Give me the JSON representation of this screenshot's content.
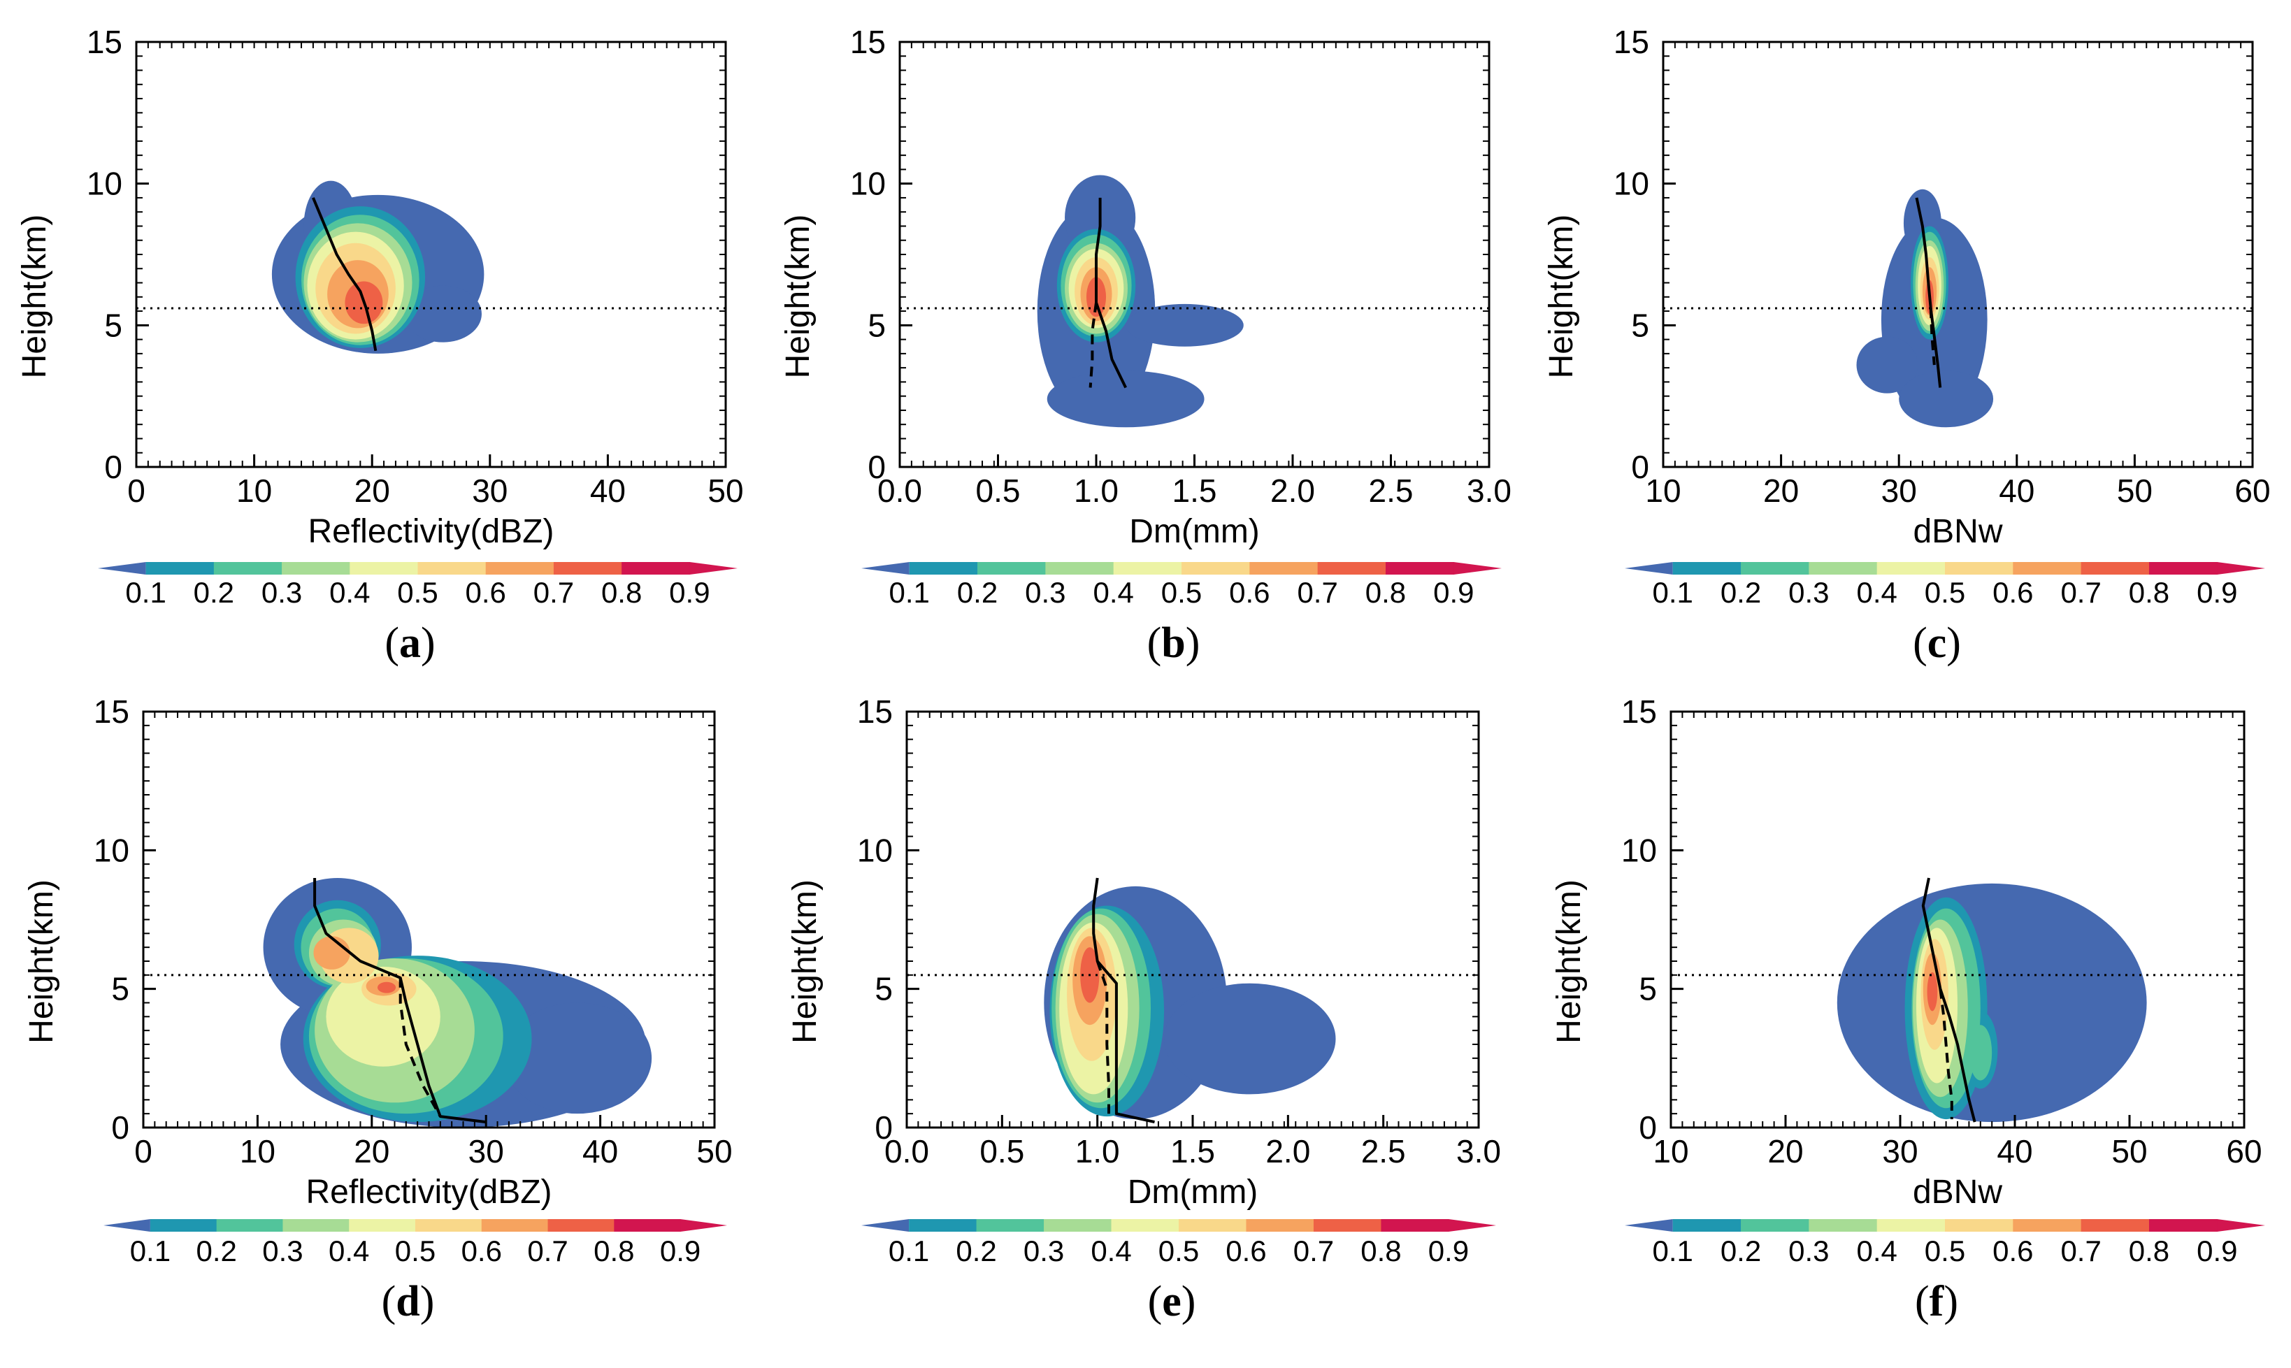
{
  "colors": {
    "levels": [
      "#4569b0",
      "#1f97b0",
      "#52c49b",
      "#a7dc95",
      "#ecf3a5",
      "#f9d88a",
      "#f6a35f",
      "#ee6146",
      "#d2154f"
    ],
    "profile_line": "#000000",
    "melting_line": "#000000"
  },
  "chart_data": [
    {
      "type": "contour",
      "panel": "(a)",
      "panel_letter": "a",
      "xlabel": "Reflectivity(dBZ)",
      "ylabel": "Height(km)",
      "xlim": [
        0,
        50
      ],
      "ylim": [
        0,
        15
      ],
      "xticks": [
        "0",
        "10",
        "20",
        "30",
        "40",
        "50"
      ],
      "yticks": [
        "0",
        "5",
        "10",
        "15"
      ],
      "colorbar_ticks": [
        "0.1",
        "0.2",
        "0.3",
        "0.4",
        "0.5",
        "0.6",
        "0.7",
        "0.8",
        "0.9"
      ],
      "melting_level_km": 5.6,
      "solid_profile": [
        [
          15,
          9.5
        ],
        [
          16,
          8.5
        ],
        [
          17,
          7.5
        ],
        [
          18,
          6.8
        ],
        [
          19,
          6.2
        ],
        [
          19.5,
          5.6
        ],
        [
          20,
          4.8
        ],
        [
          20.3,
          4.1
        ]
      ],
      "dashed_profile": [],
      "blobs": [
        {
          "cx": 20.5,
          "cy": 6.8,
          "rx": 9.0,
          "ry": 2.8,
          "level": 0
        },
        {
          "cx": 16.5,
          "cy": 8.5,
          "rx": 2.3,
          "ry": 1.6,
          "level": 0
        },
        {
          "cx": 26.0,
          "cy": 5.4,
          "rx": 3.3,
          "ry": 1.0,
          "level": 0
        },
        {
          "cx": 19.0,
          "cy": 6.7,
          "rx": 5.5,
          "ry": 2.5,
          "level": 1
        },
        {
          "cx": 19.0,
          "cy": 6.6,
          "rx": 5.0,
          "ry": 2.3,
          "level": 2
        },
        {
          "cx": 18.8,
          "cy": 6.5,
          "rx": 4.6,
          "ry": 2.1,
          "level": 3
        },
        {
          "cx": 18.6,
          "cy": 6.4,
          "rx": 4.1,
          "ry": 1.9,
          "level": 4
        },
        {
          "cx": 18.6,
          "cy": 6.3,
          "rx": 3.4,
          "ry": 1.6,
          "level": 5
        },
        {
          "cx": 18.8,
          "cy": 6.1,
          "rx": 2.6,
          "ry": 1.2,
          "level": 6
        },
        {
          "cx": 19.3,
          "cy": 5.8,
          "rx": 1.6,
          "ry": 0.75,
          "level": 7
        }
      ]
    },
    {
      "type": "contour",
      "panel": "(b)",
      "panel_letter": "b",
      "xlabel": "Dm(mm)",
      "ylabel": "Height(km)",
      "xlim": [
        0,
        3
      ],
      "ylim": [
        0,
        15
      ],
      "xticks": [
        "0.0",
        "0.5",
        "1.0",
        "1.5",
        "2.0",
        "2.5",
        "3.0"
      ],
      "yticks": [
        "0",
        "5",
        "10",
        "15"
      ],
      "colorbar_ticks": [
        "0.1",
        "0.2",
        "0.3",
        "0.4",
        "0.5",
        "0.6",
        "0.7",
        "0.8",
        "0.9"
      ],
      "melting_level_km": 5.6,
      "solid_profile": [
        [
          1.02,
          9.5
        ],
        [
          1.02,
          8.5
        ],
        [
          1.0,
          7.5
        ],
        [
          1.0,
          6.5
        ],
        [
          1.0,
          5.8
        ],
        [
          1.05,
          4.8
        ],
        [
          1.08,
          3.8
        ],
        [
          1.15,
          2.8
        ]
      ],
      "dashed_profile": [
        [
          1.0,
          5.8
        ],
        [
          0.98,
          4.8
        ],
        [
          0.98,
          3.8
        ],
        [
          0.97,
          2.8
        ]
      ],
      "blobs": [
        {
          "cx": 1.0,
          "cy": 5.5,
          "rx": 0.3,
          "ry": 3.8,
          "level": 0
        },
        {
          "cx": 1.02,
          "cy": 8.8,
          "rx": 0.18,
          "ry": 1.5,
          "level": 0
        },
        {
          "cx": 1.45,
          "cy": 5.0,
          "rx": 0.3,
          "ry": 0.75,
          "level": 0
        },
        {
          "cx": 1.15,
          "cy": 2.4,
          "rx": 0.4,
          "ry": 1.0,
          "level": 0
        },
        {
          "cx": 1.0,
          "cy": 6.4,
          "rx": 0.2,
          "ry": 2.0,
          "level": 1
        },
        {
          "cx": 1.0,
          "cy": 6.4,
          "rx": 0.18,
          "ry": 1.8,
          "level": 2
        },
        {
          "cx": 1.0,
          "cy": 6.3,
          "rx": 0.16,
          "ry": 1.6,
          "level": 3
        },
        {
          "cx": 1.0,
          "cy": 6.3,
          "rx": 0.14,
          "ry": 1.4,
          "level": 4
        },
        {
          "cx": 1.0,
          "cy": 6.2,
          "rx": 0.11,
          "ry": 1.2,
          "level": 5
        },
        {
          "cx": 1.0,
          "cy": 6.1,
          "rx": 0.08,
          "ry": 0.95,
          "level": 6
        },
        {
          "cx": 1.0,
          "cy": 6.0,
          "rx": 0.05,
          "ry": 0.7,
          "level": 7
        }
      ]
    },
    {
      "type": "contour",
      "panel": "(c)",
      "panel_letter": "c",
      "xlabel": "dBNw",
      "ylabel": "Height(km)",
      "xlim": [
        10,
        60
      ],
      "ylim": [
        0,
        15
      ],
      "xticks": [
        "10",
        "20",
        "30",
        "40",
        "50",
        "60"
      ],
      "yticks": [
        "0",
        "5",
        "10",
        "15"
      ],
      "colorbar_ticks": [
        "0.1",
        "0.2",
        "0.3",
        "0.4",
        "0.5",
        "0.6",
        "0.7",
        "0.8",
        "0.9"
      ],
      "melting_level_km": 5.6,
      "solid_profile": [
        [
          31.5,
          9.5
        ],
        [
          32,
          8.5
        ],
        [
          32.3,
          7.5
        ],
        [
          32.5,
          6.5
        ],
        [
          32.7,
          5.6
        ],
        [
          33,
          4.6
        ],
        [
          33.3,
          3.6
        ],
        [
          33.5,
          2.8
        ]
      ],
      "dashed_profile": [
        [
          32.7,
          5.6
        ],
        [
          32.8,
          4.6
        ],
        [
          33.0,
          3.6
        ]
      ],
      "blobs": [
        {
          "cx": 33.0,
          "cy": 5.2,
          "rx": 4.5,
          "ry": 3.6,
          "level": 0
        },
        {
          "cx": 32.0,
          "cy": 8.6,
          "rx": 1.6,
          "ry": 1.2,
          "level": 0
        },
        {
          "cx": 29.0,
          "cy": 3.6,
          "rx": 2.6,
          "ry": 1.0,
          "level": 0
        },
        {
          "cx": 34.0,
          "cy": 2.4,
          "rx": 4.0,
          "ry": 1.0,
          "level": 0
        },
        {
          "cx": 32.6,
          "cy": 6.5,
          "rx": 1.6,
          "ry": 2.0,
          "level": 1
        },
        {
          "cx": 32.6,
          "cy": 6.5,
          "rx": 1.4,
          "ry": 1.8,
          "level": 2
        },
        {
          "cx": 32.6,
          "cy": 6.4,
          "rx": 1.2,
          "ry": 1.6,
          "level": 3
        },
        {
          "cx": 32.6,
          "cy": 6.4,
          "rx": 1.0,
          "ry": 1.4,
          "level": 4
        },
        {
          "cx": 32.6,
          "cy": 6.3,
          "rx": 0.8,
          "ry": 1.1,
          "level": 5
        },
        {
          "cx": 32.6,
          "cy": 6.2,
          "rx": 0.6,
          "ry": 0.85,
          "level": 6
        },
        {
          "cx": 32.6,
          "cy": 6.0,
          "rx": 0.35,
          "ry": 0.6,
          "level": 7
        }
      ]
    },
    {
      "type": "contour",
      "panel": "(d)",
      "panel_letter": "d",
      "xlabel": "Reflectivity(dBZ)",
      "ylabel": "Height(km)",
      "xlim": [
        0,
        50
      ],
      "ylim": [
        0,
        15
      ],
      "xticks": [
        "0",
        "10",
        "20",
        "30",
        "40",
        "50"
      ],
      "yticks": [
        "0",
        "5",
        "10",
        "15"
      ],
      "colorbar_ticks": [
        "0.1",
        "0.2",
        "0.3",
        "0.4",
        "0.5",
        "0.6",
        "0.7",
        "0.8",
        "0.9"
      ],
      "melting_level_km": 5.5,
      "solid_profile": [
        [
          15,
          9.0
        ],
        [
          15,
          8.0
        ],
        [
          16,
          7.0
        ],
        [
          19,
          6.0
        ],
        [
          22.5,
          5.4
        ],
        [
          23,
          4.5
        ],
        [
          24,
          3.0
        ],
        [
          25,
          1.5
        ],
        [
          26,
          0.4
        ],
        [
          30,
          0.2
        ]
      ],
      "dashed_profile": [
        [
          22.5,
          5.4
        ],
        [
          22.5,
          4.5
        ],
        [
          23,
          3.0
        ],
        [
          24.5,
          1.5
        ],
        [
          26,
          0.4
        ]
      ],
      "blobs": [
        {
          "cx": 28.0,
          "cy": 3.0,
          "rx": 16.0,
          "ry": 3.0,
          "level": 0
        },
        {
          "cx": 17.0,
          "cy": 6.5,
          "rx": 6.5,
          "ry": 2.5,
          "level": 0
        },
        {
          "cx": 38.0,
          "cy": 2.5,
          "rx": 6.5,
          "ry": 2.0,
          "level": 0
        },
        {
          "cx": 24.0,
          "cy": 3.2,
          "rx": 10.0,
          "ry": 3.0,
          "level": 1
        },
        {
          "cx": 17.0,
          "cy": 6.6,
          "rx": 3.8,
          "ry": 1.6,
          "level": 1
        },
        {
          "cx": 23.0,
          "cy": 3.3,
          "rx": 8.5,
          "ry": 2.8,
          "level": 2
        },
        {
          "cx": 17.0,
          "cy": 6.5,
          "rx": 3.2,
          "ry": 1.4,
          "level": 2
        },
        {
          "cx": 22.0,
          "cy": 3.5,
          "rx": 7.0,
          "ry": 2.6,
          "level": 3
        },
        {
          "cx": 17.5,
          "cy": 6.3,
          "rx": 3.0,
          "ry": 1.2,
          "level": 3
        },
        {
          "cx": 21.0,
          "cy": 4.0,
          "rx": 5.0,
          "ry": 1.8,
          "level": 4
        },
        {
          "cx": 18.0,
          "cy": 6.2,
          "rx": 2.6,
          "ry": 1.0,
          "level": 5
        },
        {
          "cx": 21.5,
          "cy": 5.0,
          "rx": 2.4,
          "ry": 0.6,
          "level": 5
        },
        {
          "cx": 16.5,
          "cy": 6.3,
          "rx": 1.6,
          "ry": 0.6,
          "level": 6
        },
        {
          "cx": 21.0,
          "cy": 5.1,
          "rx": 1.5,
          "ry": 0.35,
          "level": 6
        },
        {
          "cx": 21.3,
          "cy": 5.05,
          "rx": 0.8,
          "ry": 0.2,
          "level": 7
        }
      ]
    },
    {
      "type": "contour",
      "panel": "(e)",
      "panel_letter": "e",
      "xlabel": "Dm(mm)",
      "ylabel": "Height(km)",
      "xlim": [
        0,
        3
      ],
      "ylim": [
        0,
        15
      ],
      "xticks": [
        "0.0",
        "0.5",
        "1.0",
        "1.5",
        "2.0",
        "2.5",
        "3.0"
      ],
      "yticks": [
        "0",
        "5",
        "10",
        "15"
      ],
      "colorbar_ticks": [
        "0.1",
        "0.2",
        "0.3",
        "0.4",
        "0.5",
        "0.6",
        "0.7",
        "0.8",
        "0.9"
      ],
      "melting_level_km": 5.5,
      "solid_profile": [
        [
          1.0,
          9.0
        ],
        [
          0.98,
          8.0
        ],
        [
          0.98,
          7.0
        ],
        [
          1.0,
          6.0
        ],
        [
          1.1,
          5.2
        ],
        [
          1.1,
          3.5
        ],
        [
          1.1,
          2.0
        ],
        [
          1.1,
          0.5
        ],
        [
          1.3,
          0.2
        ]
      ],
      "dashed_profile": [
        [
          1.0,
          6.0
        ],
        [
          1.05,
          5.0
        ],
        [
          1.05,
          3.0
        ],
        [
          1.06,
          1.5
        ],
        [
          1.06,
          0.5
        ]
      ],
      "blobs": [
        {
          "cx": 1.2,
          "cy": 4.5,
          "rx": 0.48,
          "ry": 4.2,
          "level": 0
        },
        {
          "cx": 1.8,
          "cy": 3.2,
          "rx": 0.45,
          "ry": 2.0,
          "level": 0
        },
        {
          "cx": 1.05,
          "cy": 4.2,
          "rx": 0.3,
          "ry": 3.8,
          "level": 1
        },
        {
          "cx": 1.02,
          "cy": 4.3,
          "rx": 0.26,
          "ry": 3.6,
          "level": 2
        },
        {
          "cx": 1.0,
          "cy": 4.3,
          "rx": 0.22,
          "ry": 3.4,
          "level": 3
        },
        {
          "cx": 0.98,
          "cy": 4.3,
          "rx": 0.18,
          "ry": 3.1,
          "level": 4
        },
        {
          "cx": 0.97,
          "cy": 4.8,
          "rx": 0.13,
          "ry": 2.4,
          "level": 5
        },
        {
          "cx": 0.96,
          "cy": 5.3,
          "rx": 0.09,
          "ry": 1.6,
          "level": 6
        },
        {
          "cx": 0.96,
          "cy": 5.5,
          "rx": 0.05,
          "ry": 1.0,
          "level": 7
        }
      ]
    },
    {
      "type": "contour",
      "panel": "(f)",
      "panel_letter": "f",
      "xlabel": "dBNw",
      "ylabel": "Height(km)",
      "xlim": [
        10,
        60
      ],
      "ylim": [
        0,
        15
      ],
      "xticks": [
        "10",
        "20",
        "30",
        "40",
        "50",
        "60"
      ],
      "yticks": [
        "0",
        "5",
        "10",
        "15"
      ],
      "colorbar_ticks": [
        "0.1",
        "0.2",
        "0.3",
        "0.4",
        "0.5",
        "0.6",
        "0.7",
        "0.8",
        "0.9"
      ],
      "melting_level_km": 5.5,
      "solid_profile": [
        [
          32.5,
          9.0
        ],
        [
          32,
          8.0
        ],
        [
          32.5,
          7.0
        ],
        [
          33,
          6.0
        ],
        [
          33.5,
          5.0
        ],
        [
          34.3,
          4.0
        ],
        [
          35,
          3.0
        ],
        [
          35.5,
          2.0
        ],
        [
          36,
          1.0
        ],
        [
          36.5,
          0.2
        ]
      ],
      "dashed_profile": [
        [
          33.5,
          5.0
        ],
        [
          33.8,
          4.0
        ],
        [
          34,
          3.0
        ],
        [
          34.2,
          2.0
        ],
        [
          34.5,
          1.0
        ],
        [
          34.5,
          0.3
        ]
      ],
      "blobs": [
        {
          "cx": 38.0,
          "cy": 4.5,
          "rx": 13.5,
          "ry": 4.3,
          "level": 0
        },
        {
          "cx": 34.0,
          "cy": 4.3,
          "rx": 3.6,
          "ry": 4.0,
          "level": 1
        },
        {
          "cx": 37.0,
          "cy": 2.8,
          "rx": 1.5,
          "ry": 1.4,
          "level": 1
        },
        {
          "cx": 34.0,
          "cy": 4.3,
          "rx": 3.0,
          "ry": 3.6,
          "level": 2
        },
        {
          "cx": 37.0,
          "cy": 2.7,
          "rx": 1.0,
          "ry": 1.0,
          "level": 2
        },
        {
          "cx": 33.5,
          "cy": 4.3,
          "rx": 2.4,
          "ry": 3.2,
          "level": 3
        },
        {
          "cx": 33.2,
          "cy": 4.4,
          "rx": 1.8,
          "ry": 2.8,
          "level": 4
        },
        {
          "cx": 33.0,
          "cy": 4.8,
          "rx": 1.2,
          "ry": 2.0,
          "level": 5
        },
        {
          "cx": 32.8,
          "cy": 5.0,
          "rx": 0.8,
          "ry": 1.3,
          "level": 6
        },
        {
          "cx": 32.8,
          "cy": 4.9,
          "rx": 0.45,
          "ry": 0.7,
          "level": 7
        }
      ]
    }
  ]
}
